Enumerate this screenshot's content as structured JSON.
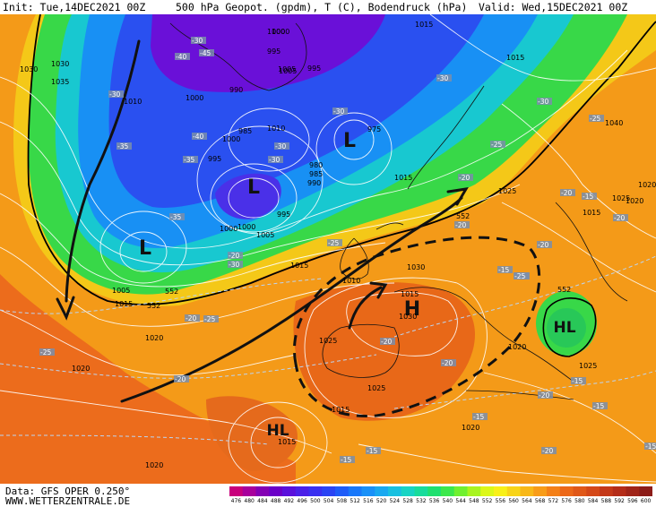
{
  "header": {
    "init": "Init: Tue,14DEC2021 00Z",
    "title": "500 hPa Geopot. (gpdm), T (C), Bodendruck (hPa)",
    "valid": "Valid: Wed,15DEC2021 00Z"
  },
  "footer": {
    "data_source": "Data: GFS OPER 0.250°",
    "website": "WWW.WETTERZENTRALE.DE"
  },
  "legend": {
    "values": [
      "476",
      "480",
      "484",
      "488",
      "492",
      "496",
      "500",
      "504",
      "508",
      "512",
      "516",
      "520",
      "524",
      "528",
      "532",
      "536",
      "540",
      "544",
      "548",
      "552",
      "556",
      "560",
      "564",
      "568",
      "572",
      "576",
      "580",
      "584",
      "588",
      "592",
      "596",
      "600"
    ],
    "colors": [
      "#c8007c",
      "#a8009c",
      "#8400b4",
      "#6a00c8",
      "#5a10dc",
      "#4a20e8",
      "#3a30f0",
      "#2a44f4",
      "#1e5cf8",
      "#1878fa",
      "#1890f8",
      "#18a8f0",
      "#18c0e0",
      "#18d4c4",
      "#18dc9c",
      "#20e070",
      "#3ce84c",
      "#70f030",
      "#a8f420",
      "#dcf818",
      "#f8f018",
      "#f8d418",
      "#f8b818",
      "#f89c18",
      "#f48018",
      "#ec6818",
      "#e05818",
      "#d44818",
      "#c43818",
      "#b42c18",
      "#a02418",
      "#8c1c18"
    ]
  },
  "pressure_systems": [
    {
      "label": "L"
    },
    {
      "label": "L"
    },
    {
      "label": "L"
    },
    {
      "label": "H"
    },
    {
      "label": "HL"
    },
    {
      "label": "HL"
    }
  ],
  "isobar_labels": [
    "1000",
    "995",
    "1000",
    "1005",
    "995",
    "1015",
    "1030",
    "1035",
    "1010",
    "1000",
    "990",
    "1005",
    "1010",
    "995",
    "1000",
    "985",
    "975",
    "980",
    "985",
    "990",
    "1000",
    "995",
    "1000",
    "1005",
    "1015",
    "1040",
    "1025",
    "1020",
    "1015",
    "1025",
    "1030",
    "1015",
    "1030",
    "1025",
    "1025",
    "1010",
    "1005",
    "1015",
    "1020",
    "1020",
    "1015",
    "1020",
    "1025",
    "1020",
    "1015",
    "1020",
    "1015",
    "1030",
    "1020",
    "1015"
  ],
  "temperature_labels": [
    "-30",
    "-45",
    "-40",
    "-40",
    "-35",
    "-30",
    "-35",
    "-30",
    "-35",
    "-30",
    "-30",
    "-25",
    "-25",
    "-30",
    "-20",
    "-20",
    "-20",
    "-15",
    "-15",
    "-20",
    "-15",
    "-20",
    "-25",
    "-25",
    "-20",
    "-20",
    "-15",
    "-20",
    "-15",
    "-20",
    "-15",
    "-20",
    "-15",
    "-15",
    "-15",
    "-20",
    "-30",
    "-25",
    "-20",
    "-25",
    "-30"
  ],
  "contour_labels": [
    "552",
    "552",
    "552",
    "552"
  ]
}
